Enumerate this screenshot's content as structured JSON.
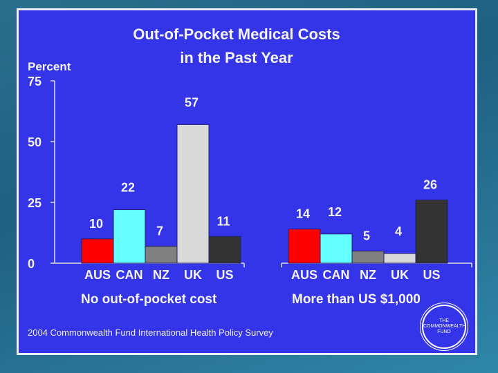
{
  "chart_data": {
    "type": "bar",
    "title_lines": [
      "Out-of-Pocket Medical Costs",
      "in the Past Year"
    ],
    "ylabel": "Percent",
    "ylim": [
      0,
      75
    ],
    "yticks": [
      0,
      25,
      50,
      75
    ],
    "groups": [
      {
        "label": "No out-of-pocket cost",
        "categories": [
          "AUS",
          "CAN",
          "NZ",
          "UK",
          "US"
        ],
        "values": [
          10,
          22,
          7,
          57,
          11
        ]
      },
      {
        "label": "More than US $1,000",
        "categories": [
          "AUS",
          "CAN",
          "NZ",
          "UK",
          "US"
        ],
        "values": [
          14,
          12,
          5,
          4,
          26
        ]
      }
    ],
    "bar_colors": [
      "#ff0000",
      "#66ffff",
      "#808080",
      "#d9d9d9",
      "#333333"
    ]
  },
  "footer": {
    "survey": "2004 Commonwealth Fund International Health Policy Survey",
    "logo_lines": [
      "THE",
      "COMMONWEALTH",
      "FUND"
    ]
  }
}
